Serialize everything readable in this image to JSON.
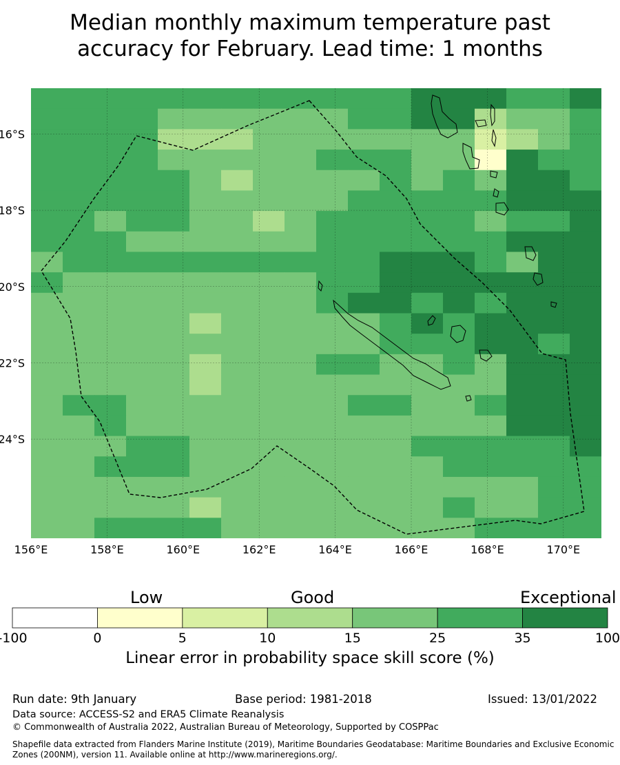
{
  "title": {
    "line1": "Median monthly maximum temperature past",
    "line2": "accuracy for February. Lead time: 1 months"
  },
  "map": {
    "lon_labels": [
      "156°E",
      "158°E",
      "160°E",
      "162°E",
      "164°E",
      "166°E",
      "168°E",
      "170°E"
    ],
    "lat_labels": [
      "16°S",
      "18°S",
      "20°S",
      "22°S",
      "24°S"
    ],
    "lon_values": [
      156,
      158,
      160,
      162,
      164,
      166,
      168,
      170
    ],
    "lat_values": [
      -16,
      -18,
      -20,
      -22,
      -24
    ],
    "lon_range": [
      156,
      171
    ],
    "lat_range": [
      -26.6,
      -14.8
    ],
    "grid": true,
    "boundary": "dashed EEZ outline (New Caledonia)"
  },
  "colorbar": {
    "header_low": "Low",
    "header_good": "Good",
    "header_exceptional": "Exceptional",
    "ticks": [
      "-100",
      "0",
      "5",
      "10",
      "15",
      "25",
      "35",
      "100"
    ],
    "colors": [
      "#ffffff",
      "#ffffcc",
      "#d9f0a3",
      "#addd8e",
      "#78c679",
      "#41ab5d",
      "#238443"
    ],
    "label": "Linear error in probability space skill score (%)"
  },
  "footer": {
    "run_date": "Run date: 9th January",
    "base_period": "Base period: 1981-2018",
    "issued": "Issued: 13/01/2022",
    "data_source": "Data source: ACCESS-S2 and ERA5 Climate Reanalysis",
    "copyright": "© Commonwealth of Australia 2022, Australian Bureau of Meteorology, Supported by COSPPac",
    "shapefile": "Shapefile data extracted from Flanders Marine Institute (2019), Maritime Boundaries Geodatabase: Maritime Boundaries and Exclusive Economic Zones (200NM), version 11. Available online at http://www.marineregions.org/."
  }
}
